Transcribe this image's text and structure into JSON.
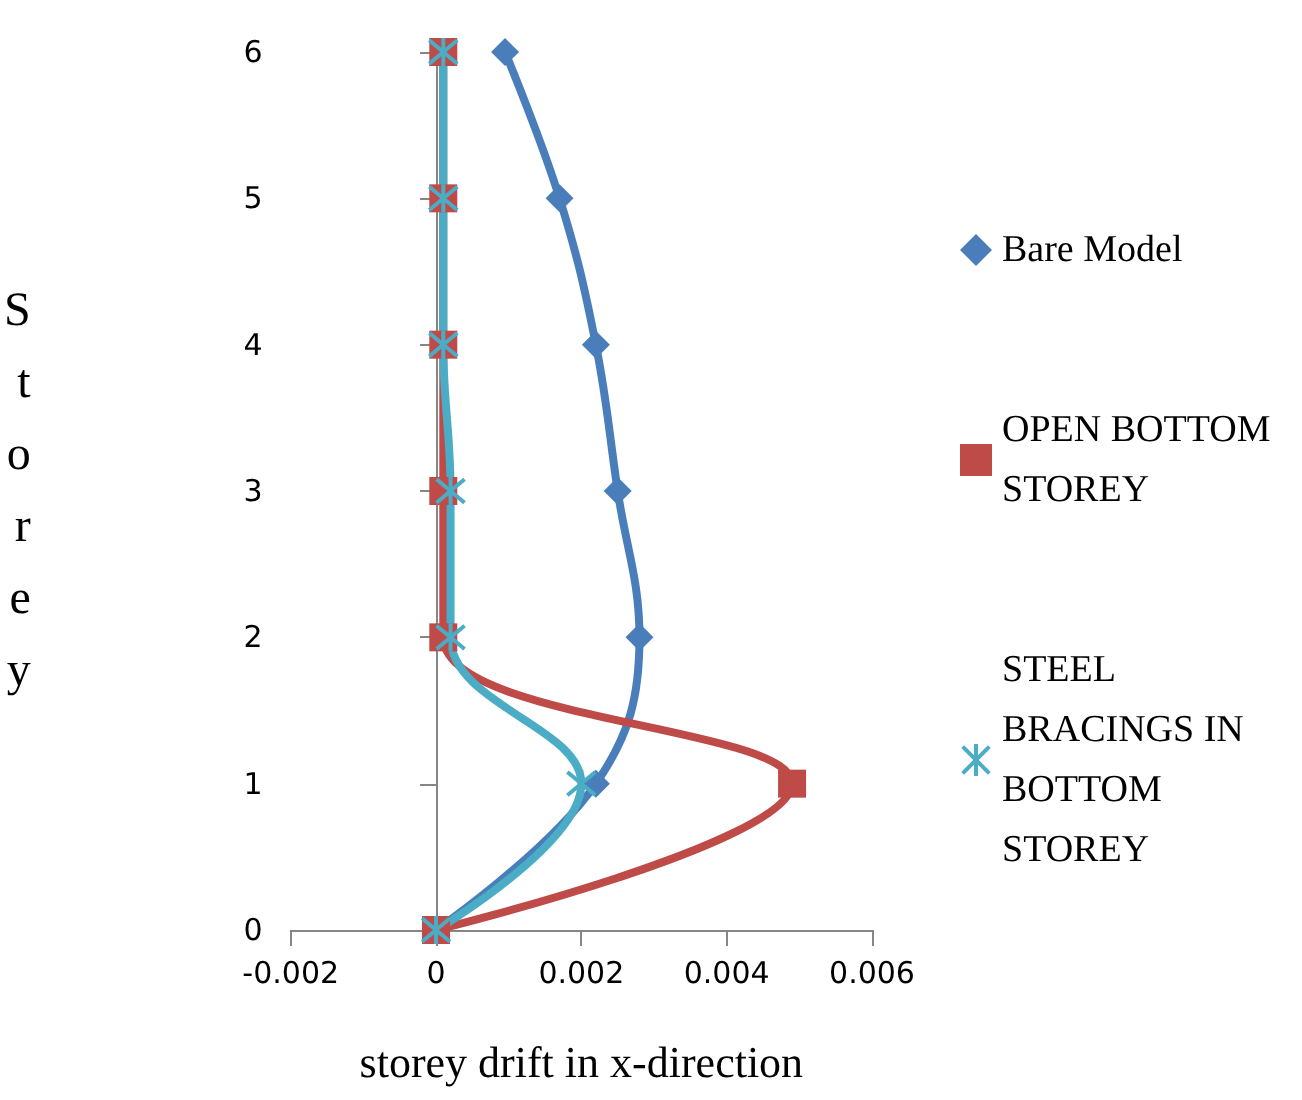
{
  "chart_data": {
    "type": "line",
    "xlabel": "storey drift in x-direction",
    "ylabel": "Storey",
    "xlim": [
      -0.002,
      0.006
    ],
    "xticks": [
      -0.002,
      0,
      0.002,
      0.004,
      0.006
    ],
    "ylim": [
      0,
      6
    ],
    "yticks": [
      0,
      1,
      2,
      3,
      4,
      5,
      6
    ],
    "legend": "right",
    "series": [
      {
        "name": "Bare Model",
        "color": "#4a7ebb",
        "marker": "diamond",
        "x": [
          0,
          0.0022,
          0.0028,
          0.0025,
          0.0022,
          0.0017,
          0.00095
        ],
        "values": [
          0,
          1,
          2,
          3,
          4,
          5,
          6
        ]
      },
      {
        "name": "OPEN BOTTOM STOREY",
        "color": "#be4b48",
        "marker": "square",
        "x": [
          0,
          0.0049,
          0.0001,
          0.0001,
          0.0001,
          0.0001,
          0.0001
        ],
        "values": [
          0,
          1,
          2,
          3,
          4,
          5,
          6
        ]
      },
      {
        "name": "STEEL BRACINGS IN BOTTOM STOREY",
        "color": "#4bacc6",
        "marker": "cross",
        "x": [
          0,
          0.002,
          0.0002,
          0.0002,
          0.0001,
          0.0001,
          0.0001
        ],
        "values": [
          0,
          1,
          2,
          3,
          4,
          5,
          6
        ]
      }
    ]
  }
}
